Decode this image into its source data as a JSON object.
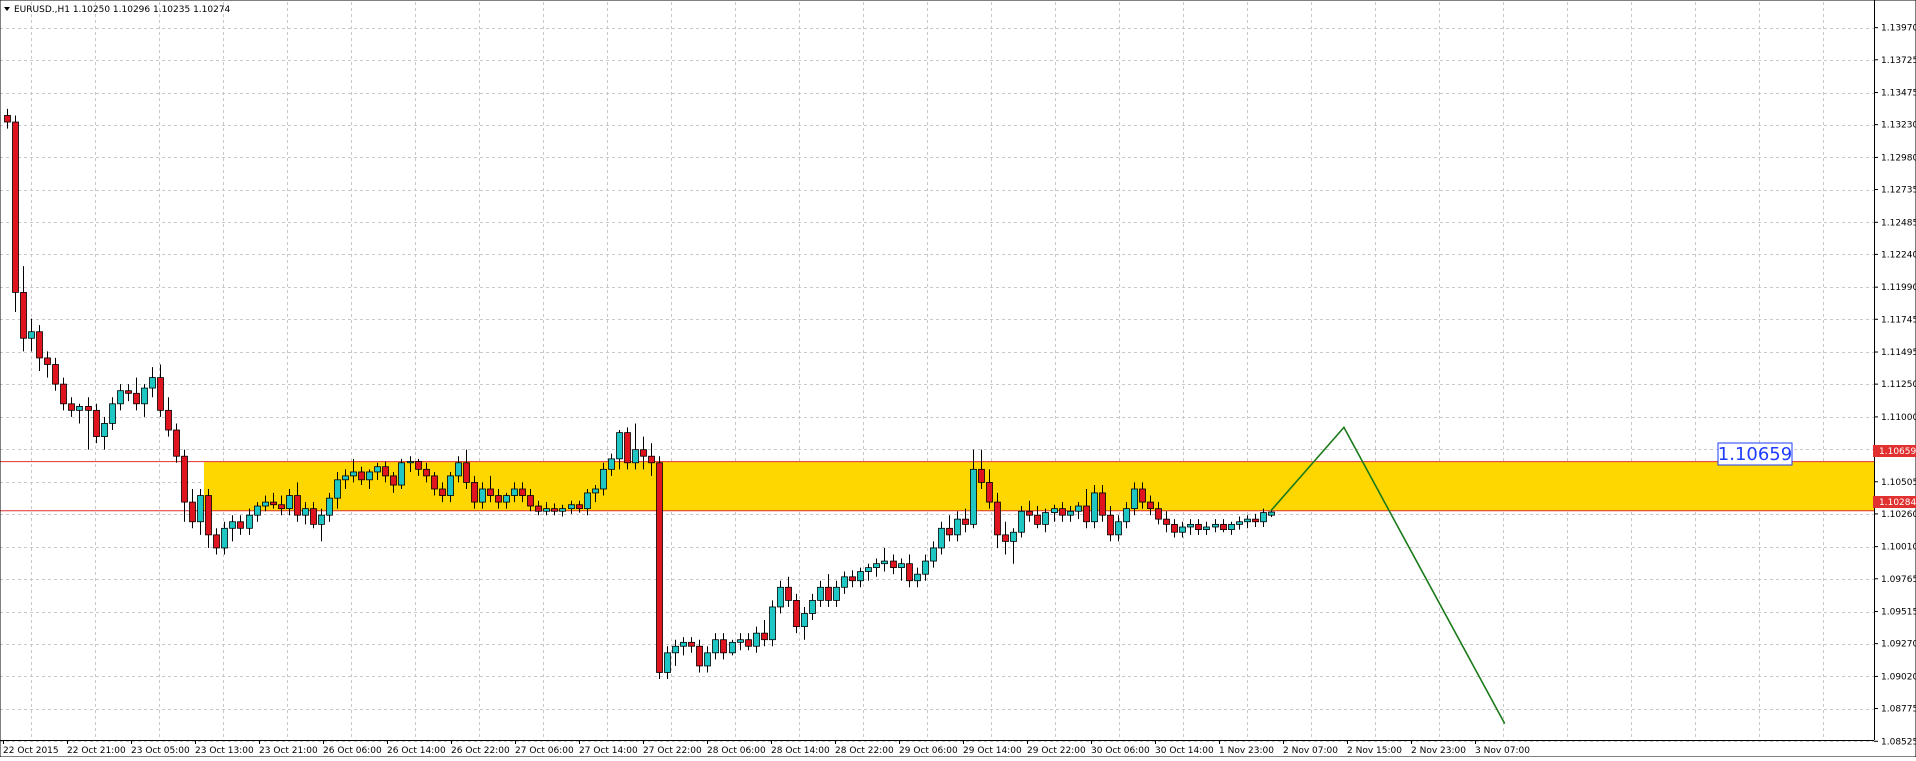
{
  "symbol_header": "EURUSD.,H1  1.10250 1.10296 1.10235 1.10274",
  "price_box_label": "1.10659",
  "level_tags": {
    "upper": "1.10659",
    "lower": "1.10284"
  },
  "colors": {
    "background": "#ffffff",
    "grid": "#c8c8c8",
    "bull_candle": "#1fc7c4",
    "bear_candle": "#e0141e",
    "zone_fill": "#ffd700",
    "level_line": "#e03030",
    "forecast_line": "#1a7a1a",
    "price_box_text": "#1e3cff"
  },
  "chart_data": {
    "type": "candlestick",
    "title": "EURUSD.,H1",
    "ylim": [
      1.0855,
      1.1412
    ],
    "y_tick_labels": [
      "1.13970",
      "1.13725",
      "1.13475",
      "1.13230",
      "1.12980",
      "1.12735",
      "1.12485",
      "1.12240",
      "1.11990",
      "1.11745",
      "1.11495",
      "1.11250",
      "1.11000",
      "1.10755",
      "1.10505",
      "1.10260",
      "1.10010",
      "1.09765",
      "1.09515",
      "1.09270",
      "1.09020",
      "1.08775",
      "1.08525"
    ],
    "x_tick_labels": [
      "22 Oct 2015",
      "22 Oct 21:00",
      "23 Oct 05:00",
      "23 Oct 13:00",
      "23 Oct 21:00",
      "26 Oct 06:00",
      "26 Oct 14:00",
      "26 Oct 22:00",
      "27 Oct 06:00",
      "27 Oct 14:00",
      "27 Oct 22:00",
      "28 Oct 06:00",
      "28 Oct 14:00",
      "28 Oct 22:00",
      "29 Oct 06:00",
      "29 Oct 14:00",
      "29 Oct 22:00",
      "30 Oct 06:00",
      "30 Oct 14:00",
      "1 Nov 23:00",
      "2 Nov 07:00",
      "2 Nov 15:00",
      "2 Nov 23:00",
      "3 Nov 07:00"
    ],
    "last_quote": {
      "open": 1.1025,
      "high": 1.10296,
      "low": 1.10235,
      "close": 1.10274
    },
    "zone": {
      "top": 1.10659,
      "bottom": 1.10284
    },
    "forecast_path": [
      [
        1.10284,
        0
      ],
      [
        1.1092,
        5
      ],
      [
        1.0866,
        16
      ]
    ],
    "candles": [
      [
        1.133,
        1.1335,
        1.132,
        1.1325
      ],
      [
        1.1325,
        1.133,
        1.118,
        1.1195
      ],
      [
        1.1195,
        1.1215,
        1.115,
        1.116
      ],
      [
        1.116,
        1.1175,
        1.115,
        1.1165
      ],
      [
        1.1165,
        1.117,
        1.1135,
        1.1145
      ],
      [
        1.1145,
        1.115,
        1.113,
        1.114
      ],
      [
        1.114,
        1.1145,
        1.112,
        1.1125
      ],
      [
        1.1125,
        1.113,
        1.1105,
        1.111
      ],
      [
        1.111,
        1.1115,
        1.11,
        1.1105
      ],
      [
        1.1105,
        1.111,
        1.1095,
        1.1108
      ],
      [
        1.1108,
        1.1115,
        1.1075,
        1.1105
      ],
      [
        1.1105,
        1.111,
        1.108,
        1.1085
      ],
      [
        1.1085,
        1.11,
        1.1075,
        1.1095
      ],
      [
        1.1095,
        1.1115,
        1.109,
        1.111
      ],
      [
        1.111,
        1.1125,
        1.1105,
        1.112
      ],
      [
        1.112,
        1.1125,
        1.1112,
        1.1118
      ],
      [
        1.1118,
        1.113,
        1.1105,
        1.111
      ],
      [
        1.111,
        1.1125,
        1.11,
        1.1122
      ],
      [
        1.1122,
        1.1138,
        1.1115,
        1.113
      ],
      [
        1.113,
        1.114,
        1.11,
        1.1105
      ],
      [
        1.1105,
        1.1115,
        1.1085,
        1.109
      ],
      [
        1.109,
        1.1095,
        1.1065,
        1.107
      ],
      [
        1.107,
        1.1075,
        1.102,
        1.1035
      ],
      [
        1.1035,
        1.1045,
        1.1015,
        1.102
      ],
      [
        1.102,
        1.1045,
        1.101,
        1.104
      ],
      [
        1.104,
        1.1045,
        1.1,
        1.101
      ],
      [
        1.101,
        1.1015,
        1.0995,
        1.1
      ],
      [
        1.1,
        1.102,
        1.0995,
        1.1015
      ],
      [
        1.1015,
        1.1025,
        1.1005,
        1.102
      ],
      [
        1.102,
        1.1025,
        1.101,
        1.1015
      ],
      [
        1.1015,
        1.103,
        1.101,
        1.1025
      ],
      [
        1.1025,
        1.1035,
        1.102,
        1.1032
      ],
      [
        1.1032,
        1.104,
        1.1028,
        1.1035
      ],
      [
        1.1035,
        1.1042,
        1.103,
        1.1033
      ],
      [
        1.1033,
        1.104,
        1.1025,
        1.103
      ],
      [
        1.103,
        1.1045,
        1.1025,
        1.104
      ],
      [
        1.104,
        1.105,
        1.102,
        1.1025
      ],
      [
        1.1025,
        1.1035,
        1.1018,
        1.103
      ],
      [
        1.103,
        1.1035,
        1.1015,
        1.1018
      ],
      [
        1.1018,
        1.103,
        1.1005,
        1.1025
      ],
      [
        1.1025,
        1.1042,
        1.102,
        1.1038
      ],
      [
        1.1038,
        1.1058,
        1.103,
        1.1052
      ],
      [
        1.1052,
        1.106,
        1.1045,
        1.1055
      ],
      [
        1.1055,
        1.1068,
        1.105,
        1.1058
      ],
      [
        1.1058,
        1.1062,
        1.1048,
        1.1052
      ],
      [
        1.1052,
        1.106,
        1.1045,
        1.1058
      ],
      [
        1.1058,
        1.1065,
        1.1052,
        1.1062
      ],
      [
        1.1062,
        1.1066,
        1.105,
        1.1055
      ],
      [
        1.1055,
        1.1058,
        1.1042,
        1.1048
      ],
      [
        1.1048,
        1.1068,
        1.1045,
        1.1065
      ],
      [
        1.1065,
        1.107,
        1.1058,
        1.1066
      ],
      [
        1.1066,
        1.1068,
        1.1055,
        1.106
      ],
      [
        1.106,
        1.1065,
        1.105,
        1.1055
      ],
      [
        1.1055,
        1.1058,
        1.104,
        1.1045
      ],
      [
        1.1045,
        1.105,
        1.1035,
        1.104
      ],
      [
        1.104,
        1.1058,
        1.1035,
        1.1055
      ],
      [
        1.1055,
        1.107,
        1.105,
        1.1065
      ],
      [
        1.1065,
        1.1075,
        1.1045,
        1.105
      ],
      [
        1.105,
        1.1055,
        1.103,
        1.1035
      ],
      [
        1.1035,
        1.105,
        1.103,
        1.1045
      ],
      [
        1.1045,
        1.1055,
        1.1035,
        1.104
      ],
      [
        1.104,
        1.1045,
        1.103,
        1.1035
      ],
      [
        1.1035,
        1.1042,
        1.103,
        1.104
      ],
      [
        1.104,
        1.105,
        1.1035,
        1.1045
      ],
      [
        1.1045,
        1.105,
        1.1035,
        1.104
      ],
      [
        1.104,
        1.1045,
        1.1028,
        1.1032
      ],
      [
        1.1032,
        1.1036,
        1.1025,
        1.1028
      ],
      [
        1.1028,
        1.1035,
        1.1025,
        1.103
      ],
      [
        1.103,
        1.1034,
        1.1025,
        1.1028
      ],
      [
        1.1028,
        1.1033,
        1.1024,
        1.103
      ],
      [
        1.103,
        1.1036,
        1.1026,
        1.1033
      ],
      [
        1.1033,
        1.1036,
        1.1027,
        1.103
      ],
      [
        1.103,
        1.1045,
        1.1025,
        1.1042
      ],
      [
        1.1042,
        1.1048,
        1.1035,
        1.1045
      ],
      [
        1.1045,
        1.1065,
        1.104,
        1.106
      ],
      [
        1.106,
        1.1072,
        1.1055,
        1.1068
      ],
      [
        1.1068,
        1.109,
        1.106,
        1.1088
      ],
      [
        1.1088,
        1.1092,
        1.106,
        1.1065
      ],
      [
        1.1065,
        1.1095,
        1.106,
        1.1075
      ],
      [
        1.1075,
        1.1085,
        1.106,
        1.107
      ],
      [
        1.107,
        1.108,
        1.1055,
        1.1065
      ],
      [
        1.1065,
        1.107,
        1.09,
        1.0905
      ],
      [
        1.0905,
        1.0925,
        1.09,
        1.092
      ],
      [
        1.092,
        1.093,
        1.091,
        1.0925
      ],
      [
        1.0925,
        1.0932,
        1.0918,
        1.0928
      ],
      [
        1.0928,
        1.0932,
        1.092,
        1.0925
      ],
      [
        1.0925,
        1.093,
        1.0905,
        1.091
      ],
      [
        1.091,
        1.0925,
        1.0905,
        1.092
      ],
      [
        1.092,
        1.0935,
        1.0915,
        1.093
      ],
      [
        1.093,
        1.0935,
        1.0915,
        1.092
      ],
      [
        1.092,
        1.093,
        1.0918,
        1.0928
      ],
      [
        1.0928,
        1.0935,
        1.0922,
        1.093
      ],
      [
        1.093,
        1.0935,
        1.0922,
        1.0925
      ],
      [
        1.0925,
        1.094,
        1.092,
        1.0935
      ],
      [
        1.0935,
        1.0945,
        1.0925,
        1.093
      ],
      [
        1.093,
        1.096,
        1.0925,
        1.0955
      ],
      [
        1.0955,
        1.0975,
        1.095,
        1.097
      ],
      [
        1.097,
        1.0978,
        1.0955,
        1.096
      ],
      [
        1.096,
        1.0965,
        1.0935,
        1.094
      ],
      [
        1.094,
        1.0955,
        1.093,
        1.095
      ],
      [
        1.095,
        1.0965,
        1.0945,
        1.096
      ],
      [
        1.096,
        1.0975,
        1.0955,
        1.097
      ],
      [
        1.097,
        1.098,
        1.0955,
        1.096
      ],
      [
        1.096,
        1.0975,
        1.0955,
        1.097
      ],
      [
        1.097,
        1.0982,
        1.0965,
        1.0978
      ],
      [
        1.0978,
        1.0983,
        1.097,
        1.0975
      ],
      [
        1.0975,
        1.0985,
        1.097,
        1.0982
      ],
      [
        1.0982,
        1.0988,
        1.0975,
        1.0985
      ],
      [
        1.0985,
        1.0992,
        1.0978,
        1.0988
      ],
      [
        1.0988,
        1.1,
        1.0982,
        1.099
      ],
      [
        1.099,
        1.0995,
        1.098,
        1.0985
      ],
      [
        1.0985,
        1.0992,
        1.0975,
        1.0988
      ],
      [
        1.0988,
        1.0995,
        1.097,
        1.0975
      ],
      [
        1.0975,
        1.0985,
        1.097,
        1.098
      ],
      [
        1.098,
        1.0995,
        1.0975,
        1.099
      ],
      [
        1.099,
        1.1005,
        1.0985,
        1.1
      ],
      [
        1.1,
        1.102,
        1.0995,
        1.1015
      ],
      [
        1.1015,
        1.1025,
        1.1005,
        1.101
      ],
      [
        1.101,
        1.1028,
        1.1005,
        1.1022
      ],
      [
        1.1022,
        1.103,
        1.1012,
        1.1018
      ],
      [
        1.1018,
        1.1075,
        1.1015,
        1.106
      ],
      [
        1.106,
        1.1075,
        1.1045,
        1.105
      ],
      [
        1.105,
        1.106,
        1.103,
        1.1035
      ],
      [
        1.1035,
        1.1042,
        1.1,
        1.101
      ],
      [
        1.101,
        1.102,
        1.0995,
        1.1005
      ],
      [
        1.1005,
        1.1015,
        1.0988,
        1.1012
      ],
      [
        1.1012,
        1.1032,
        1.1008,
        1.1028
      ],
      [
        1.1028,
        1.1036,
        1.102,
        1.1025
      ],
      [
        1.1025,
        1.1032,
        1.1015,
        1.1018
      ],
      [
        1.1018,
        1.103,
        1.1012,
        1.1027
      ],
      [
        1.1027,
        1.1033,
        1.102,
        1.103
      ],
      [
        1.103,
        1.1035,
        1.102,
        1.1025
      ],
      [
        1.1025,
        1.1032,
        1.102,
        1.1028
      ],
      [
        1.1028,
        1.1035,
        1.1022,
        1.1032
      ],
      [
        1.1032,
        1.1045,
        1.1015,
        1.102
      ],
      [
        1.102,
        1.1048,
        1.1015,
        1.1042
      ],
      [
        1.1042,
        1.1048,
        1.102,
        1.1025
      ],
      [
        1.1025,
        1.1032,
        1.1005,
        1.101
      ],
      [
        1.101,
        1.1025,
        1.1005,
        1.102
      ],
      [
        1.102,
        1.1035,
        1.1015,
        1.103
      ],
      [
        1.103,
        1.105,
        1.1025,
        1.1045
      ],
      [
        1.1045,
        1.105,
        1.103,
        1.1035
      ],
      [
        1.1035,
        1.104,
        1.1025,
        1.103
      ],
      [
        1.103,
        1.1035,
        1.1018,
        1.1022
      ],
      [
        1.1022,
        1.1028,
        1.1012,
        1.1018
      ],
      [
        1.1018,
        1.1022,
        1.1008,
        1.1012
      ],
      [
        1.1012,
        1.102,
        1.1008,
        1.1016
      ],
      [
        1.1016,
        1.1022,
        1.101,
        1.1018
      ],
      [
        1.1018,
        1.1022,
        1.101,
        1.1014
      ],
      [
        1.1014,
        1.102,
        1.101,
        1.1016
      ],
      [
        1.1016,
        1.1022,
        1.1012,
        1.1018
      ],
      [
        1.1018,
        1.1022,
        1.1012,
        1.1014
      ],
      [
        1.1014,
        1.102,
        1.101,
        1.1018
      ],
      [
        1.1018,
        1.1024,
        1.1014,
        1.102
      ],
      [
        1.102,
        1.1025,
        1.1015,
        1.1022
      ],
      [
        1.1022,
        1.1026,
        1.1016,
        1.102
      ],
      [
        1.102,
        1.103,
        1.1016,
        1.1027
      ],
      [
        1.1025,
        1.10296,
        1.10235,
        1.10274
      ]
    ]
  }
}
